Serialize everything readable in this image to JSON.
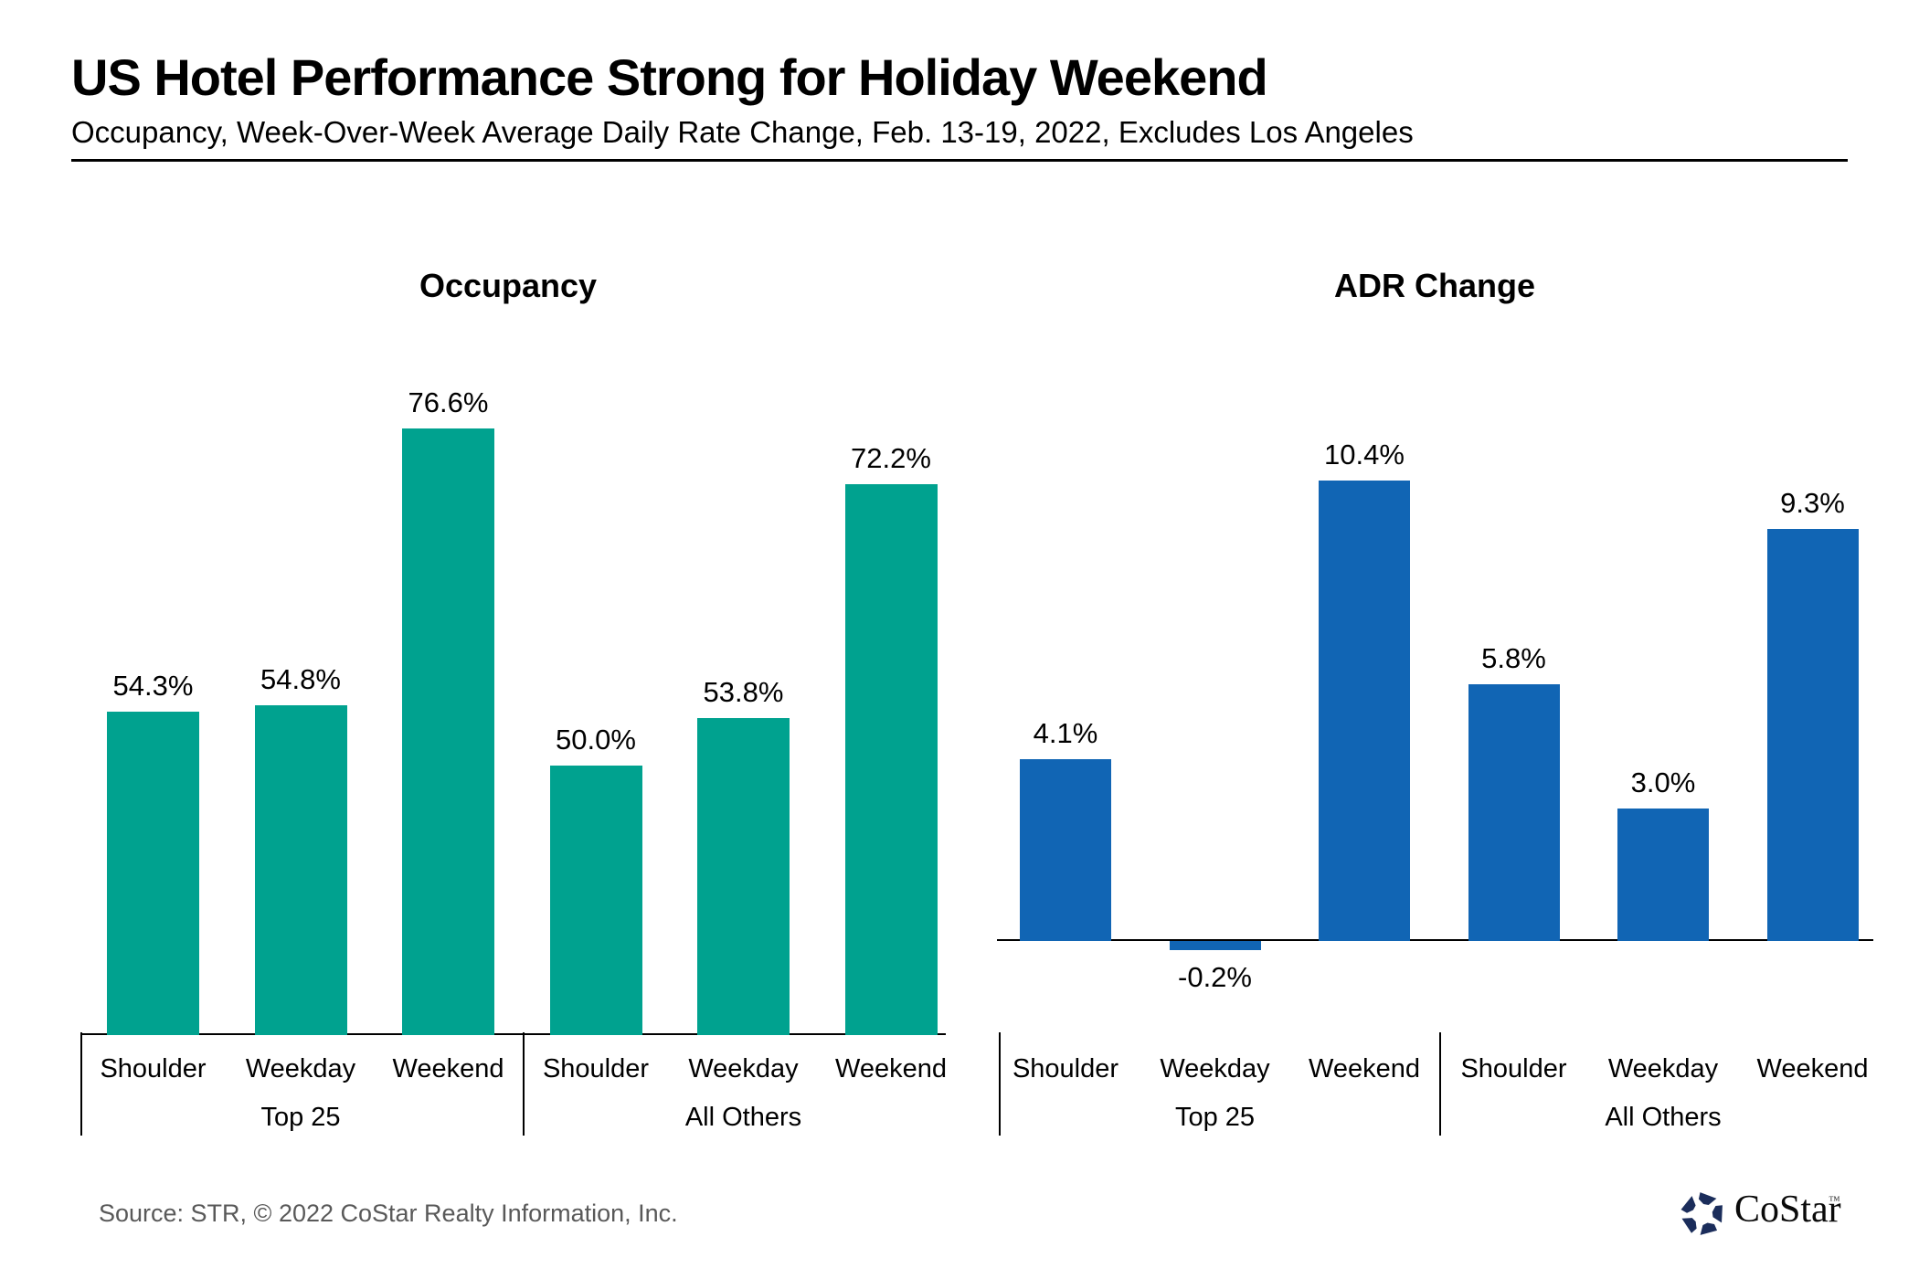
{
  "header": {
    "title": "US Hotel Performance Strong for Holiday Weekend",
    "subtitle": "Occupancy, Week-Over-Week Average Daily Rate Change, Feb. 13-19, 2022, Excludes Los Angeles"
  },
  "chart_data": [
    {
      "type": "bar",
      "title": "Occupancy",
      "categories": [
        "Shoulder",
        "Weekday",
        "Weekend",
        "Shoulder",
        "Weekday",
        "Weekend"
      ],
      "group_categories": [
        "Top 25",
        "All Others"
      ],
      "values": [
        54.3,
        54.8,
        76.6,
        50.0,
        53.8,
        72.2
      ],
      "value_labels": [
        "54.3%",
        "54.8%",
        "76.6%",
        "50.0%",
        "53.8%",
        "72.2%"
      ],
      "unit": "percent",
      "bar_color": "#00A28F",
      "ylim": [
        28.8,
        80
      ],
      "grid": false,
      "legend": "none",
      "value_label_position": "above-bar"
    },
    {
      "type": "bar",
      "title": "ADR Change",
      "categories": [
        "Shoulder",
        "Weekday",
        "Weekend",
        "Shoulder",
        "Weekday",
        "Weekend"
      ],
      "group_categories": [
        "Top 25",
        "All Others"
      ],
      "values": [
        4.1,
        -0.2,
        10.4,
        5.8,
        3.0,
        9.3
      ],
      "value_labels": [
        "4.1%",
        "-0.2%",
        "10.4%",
        "5.8%",
        "3.0%",
        "9.3%"
      ],
      "unit": "percent",
      "bar_color": "#1165B4",
      "ylim": [
        -1.5,
        12
      ],
      "grid": false,
      "legend": "none",
      "value_label_position": "above-bar-below-if-negative"
    }
  ],
  "footer": {
    "source": "Source: STR, © 2022  CoStar Realty Information, Inc.",
    "logo_text": "CoStar",
    "logo_tm": "™"
  },
  "colors": {
    "occupancy_bar": "#00A28F",
    "adr_bar": "#1165B4",
    "axis": "#000000",
    "source_text": "#595959",
    "logo_navy": "#1B2D5B",
    "background": "#FFFFFF"
  }
}
